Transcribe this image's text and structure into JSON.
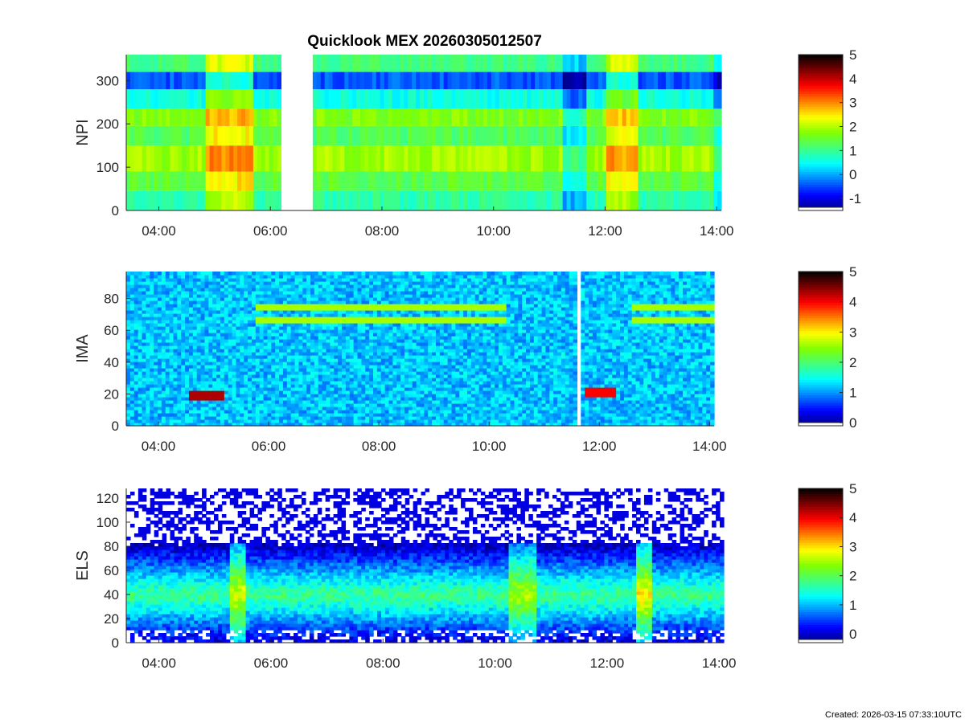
{
  "figure": {
    "title": "Quicklook MEX 20260305012507",
    "created": "Created: 2026-03-15 07:33:10UTC"
  },
  "colors": {
    "colormap_stops": [
      "#00007f",
      "#0000ff",
      "#0080ff",
      "#00ffff",
      "#40ff80",
      "#80ff00",
      "#ffff00",
      "#ff8000",
      "#ff0000",
      "#7f0000",
      "#000000"
    ]
  },
  "chart_data": [
    {
      "type": "heatmap",
      "panel": "NPI",
      "ylabel": "NPI",
      "xlim": [
        "03:25",
        "14:05"
      ],
      "xticks": [
        "04:00",
        "06:00",
        "08:00",
        "10:00",
        "12:00",
        "14:00"
      ],
      "ylim": [
        0,
        360
      ],
      "yticks": [
        0,
        100,
        200,
        300
      ],
      "clim": [
        -1.5,
        5
      ],
      "cticks": [
        -1,
        0,
        1,
        2,
        3,
        4,
        5
      ],
      "data_gaps": [
        [
          "06:10",
          "06:45"
        ]
      ],
      "rows": [
        {
          "y": [
            0,
            45
          ],
          "base": 0.9
        },
        {
          "y": [
            45,
            90
          ],
          "base": 1.4
        },
        {
          "y": [
            90,
            150
          ],
          "base": 1.9
        },
        {
          "y": [
            150,
            195
          ],
          "base": 1.3
        },
        {
          "y": [
            195,
            235
          ],
          "base": 1.7
        },
        {
          "y": [
            235,
            280
          ],
          "base": 0.6
        },
        {
          "y": [
            280,
            320
          ],
          "base": -0.4
        },
        {
          "y": [
            320,
            360
          ],
          "base": 1.1
        }
      ],
      "events": [
        {
          "time": [
            "04:50",
            "05:40"
          ],
          "delta": 1.1
        },
        {
          "time": [
            "11:15",
            "11:40"
          ],
          "delta": -0.9
        },
        {
          "time": [
            "12:00",
            "12:35"
          ],
          "delta": 1.0
        },
        {
          "time": [
            "13:55",
            "14:05"
          ],
          "delta": -0.7
        }
      ]
    },
    {
      "type": "heatmap",
      "panel": "IMA",
      "ylabel": "IMA",
      "xlim": [
        "03:25",
        "14:05"
      ],
      "xticks": [
        "04:00",
        "06:00",
        "08:00",
        "10:00",
        "12:00",
        "14:00"
      ],
      "ylim": [
        0,
        97
      ],
      "yticks": [
        0,
        20,
        40,
        60,
        80
      ],
      "clim": [
        -0.1,
        5
      ],
      "cticks": [
        0,
        1,
        2,
        3,
        4,
        5
      ],
      "data_gaps": [
        [
          "11:35",
          "11:40"
        ]
      ],
      "background": 1.2,
      "bands": [
        {
          "time": [
            "05:45",
            "10:20"
          ],
          "y": 74,
          "level": 2.6
        },
        {
          "time": [
            "05:45",
            "10:20"
          ],
          "y": 66,
          "level": 2.6
        },
        {
          "time": [
            "12:35",
            "14:05"
          ],
          "y": 74,
          "level": 2.6
        },
        {
          "time": [
            "12:35",
            "14:05"
          ],
          "y": 66,
          "level": 2.6
        }
      ],
      "hot_spots": [
        {
          "time": [
            "04:35",
            "05:10"
          ],
          "y": 20,
          "level": 4.3
        },
        {
          "time": [
            "11:45",
            "12:20"
          ],
          "y": 22,
          "level": 4.0
        }
      ]
    },
    {
      "type": "heatmap",
      "panel": "ELS",
      "ylabel": "ELS",
      "xlim": [
        "03:25",
        "14:05"
      ],
      "xticks": [
        "04:00",
        "06:00",
        "08:00",
        "10:00",
        "12:00",
        "14:00"
      ],
      "ylim": [
        0,
        128
      ],
      "yticks": [
        0,
        20,
        40,
        60,
        80,
        100,
        120
      ],
      "clim": [
        -0.3,
        5
      ],
      "cticks": [
        0,
        1,
        2,
        3,
        4,
        5
      ],
      "core_y": 40,
      "core_level": 1.8,
      "upper_edge": 82,
      "events": [
        {
          "time": [
            "05:15",
            "05:35"
          ],
          "delta": 1.0
        },
        {
          "time": [
            "10:15",
            "10:45"
          ],
          "delta": 0.8
        },
        {
          "time": [
            "12:30",
            "12:50"
          ],
          "delta": 1.2
        }
      ]
    }
  ]
}
